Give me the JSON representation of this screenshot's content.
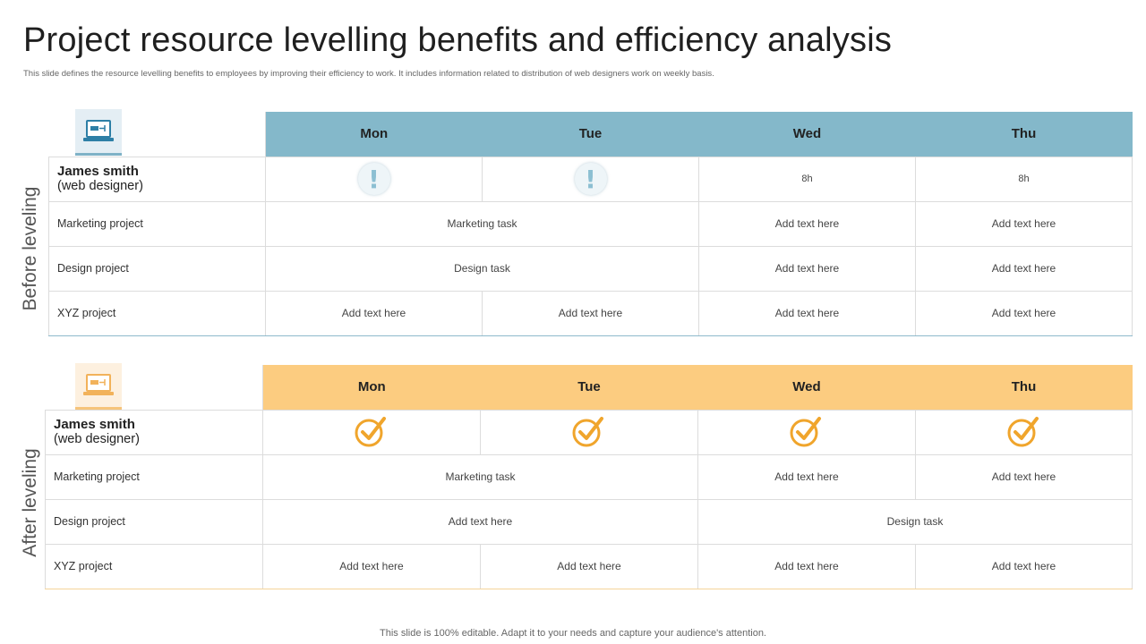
{
  "header": {
    "title": "Project resource levelling benefits and efficiency analysis",
    "subtitle": "This slide defines the resource levelling benefits to employees by improving their efficiency to work. It includes information related to distribution of web designers work on  weekly basis."
  },
  "footer": "This slide is 100% editable. Adapt it to your needs and capture your audience's attention.",
  "colors": {
    "before_header": "#84b8ca",
    "after_header": "#fccc80",
    "check": "#f0a52c"
  },
  "before": {
    "label": "Before leveling",
    "icon": "laptop-icon",
    "days": [
      "Mon",
      "Tue",
      "Wed",
      "Thu"
    ],
    "person": {
      "name": "James smith",
      "role": "(web designer)"
    },
    "status": {
      "mon": "!",
      "tue": "!",
      "wed": "8h",
      "thu": "8h"
    },
    "rows": {
      "marketing": {
        "label": "Marketing project",
        "mon_tue": "Marketing task",
        "wed": "Add text here",
        "thu": "Add text here"
      },
      "design": {
        "label": "Design project",
        "mon_tue": "Design task",
        "wed": "Add text here",
        "thu": "Add text here"
      },
      "xyz": {
        "label": "XYZ  project",
        "mon": "Add text here",
        "tue": "Add text here",
        "wed": "Add text here",
        "thu": "Add text here"
      }
    }
  },
  "after": {
    "label": "After leveling",
    "icon": "laptop-icon",
    "days": [
      "Mon",
      "Tue",
      "Wed",
      "Thu"
    ],
    "person": {
      "name": "James smith",
      "role": "(web designer)"
    },
    "status_icon": "check-circle-icon",
    "rows": {
      "marketing": {
        "label": "Marketing project",
        "mon_tue": "Marketing task",
        "wed": "Add text here",
        "thu": "Add text here"
      },
      "design": {
        "label": "Design project",
        "mon_tue": "Add text here",
        "wed_thu": "Design task"
      },
      "xyz": {
        "label": "XYZ  project",
        "mon": "Add text here",
        "tue": "Add text here",
        "wed": "Add text here",
        "thu": "Add text here"
      }
    }
  }
}
